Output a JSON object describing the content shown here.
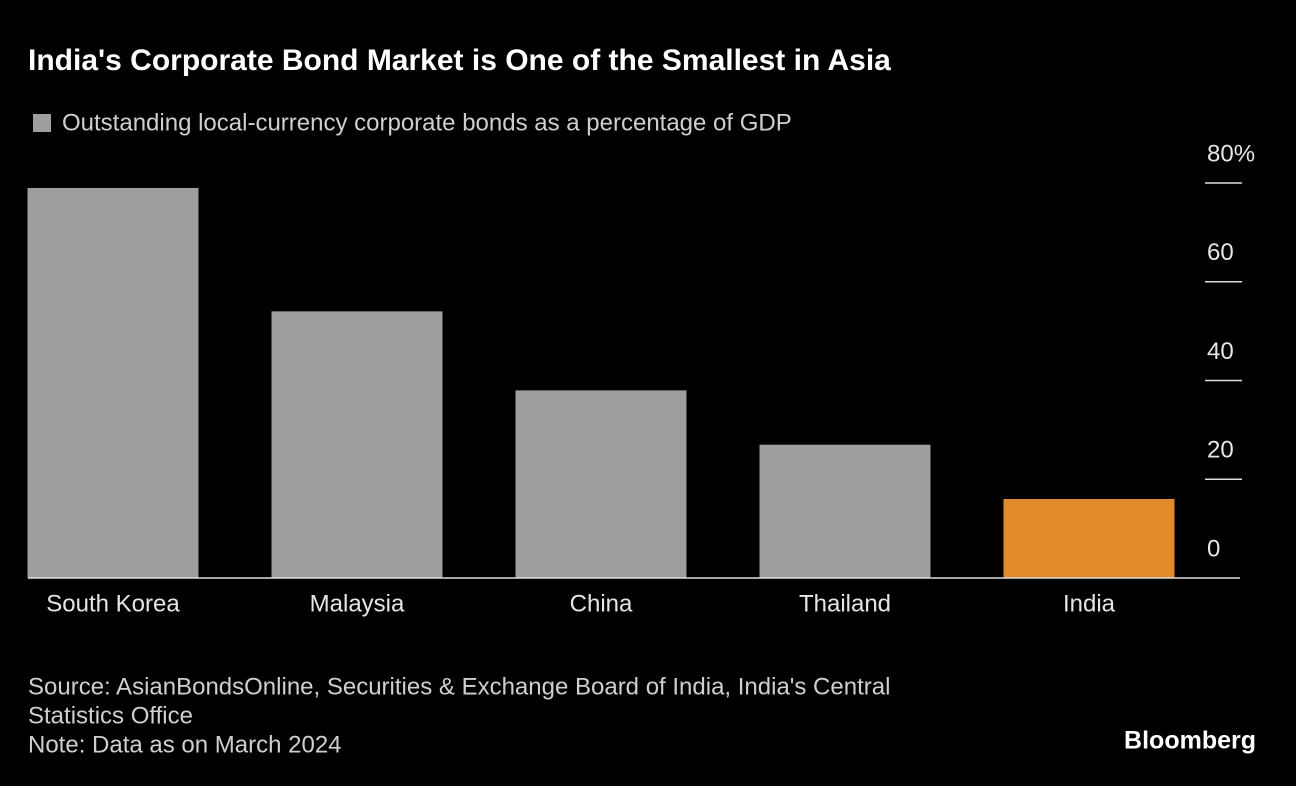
{
  "chart_data": {
    "type": "bar",
    "title": "India's Corporate Bond Market is One of the Smallest in Asia",
    "categories": [
      "South Korea",
      "Malaysia",
      "China",
      "Thailand",
      "India"
    ],
    "series": [
      {
        "name": "Outstanding local-currency corporate bonds as a percentage of GDP",
        "color": "#9e9e9e",
        "values": [
          79,
          54,
          38,
          27,
          16
        ]
      }
    ],
    "bar_colors": [
      "#9e9e9e",
      "#9e9e9e",
      "#9e9e9e",
      "#9e9e9e",
      "#e08a2a"
    ],
    "ylim": [
      0,
      80
    ],
    "yticks": [
      0,
      20,
      40,
      {
        "value": 60,
        "label": "60"
      },
      {
        "value": 80,
        "label": "80%"
      }
    ],
    "source": [
      "Source: AsianBondsOnline, Securities & Exchange Board of India, India's Central",
      "Statistics Office"
    ],
    "note": "Note: Data as on March 2024",
    "brand": "Bloomberg"
  }
}
